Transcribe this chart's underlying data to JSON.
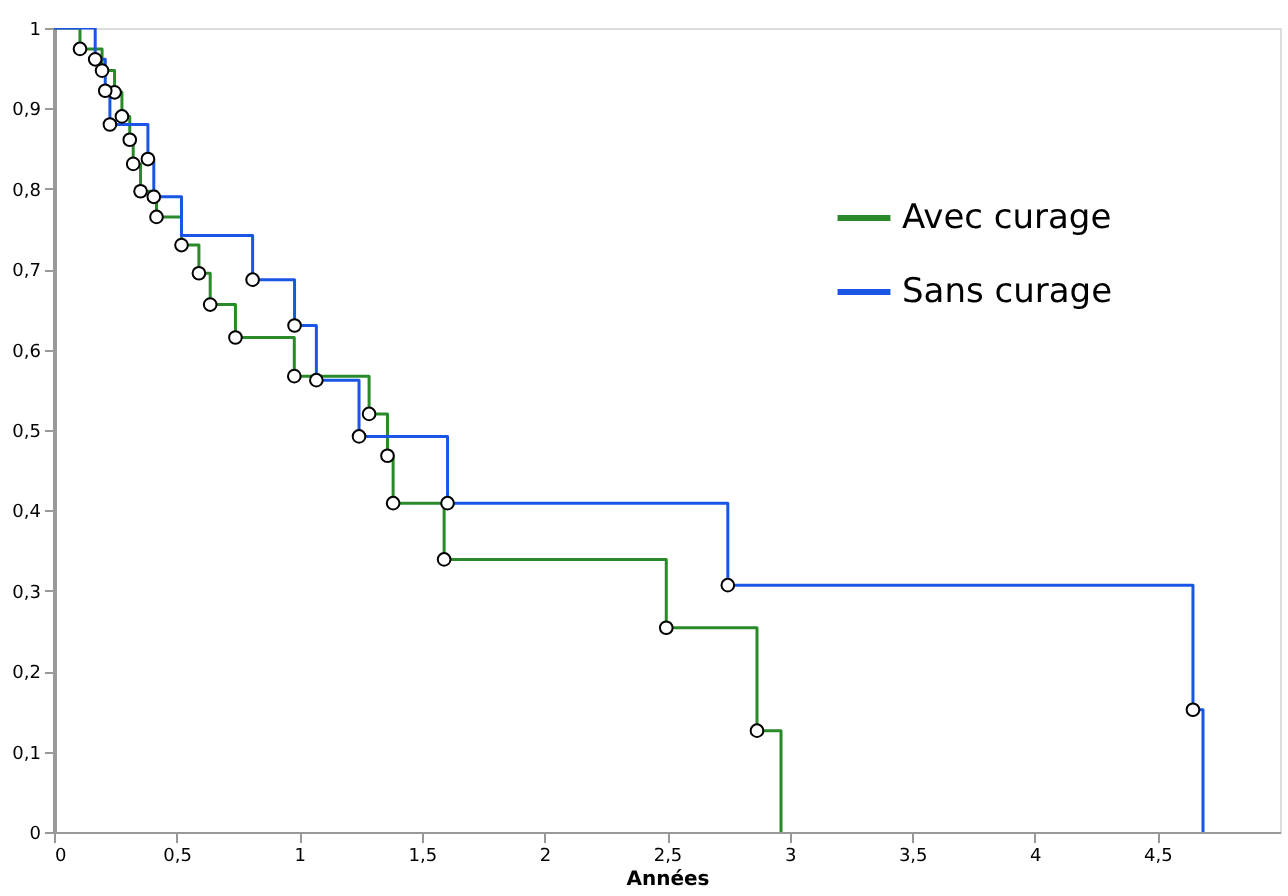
{
  "chart_data": {
    "type": "step",
    "xlabel": "Années",
    "xlim": [
      0,
      5
    ],
    "ylim": [
      0,
      1
    ],
    "xticks": [
      0,
      {
        "value": 0.5,
        "label": "0,5"
      },
      1,
      {
        "value": 1.5,
        "label": "1,5"
      },
      2,
      {
        "value": 2.5,
        "label": "2,5"
      },
      3,
      {
        "value": 3.5,
        "label": "3,5"
      },
      4,
      {
        "value": 4.5,
        "label": "4,5"
      }
    ],
    "yticks": [
      0,
      {
        "value": 0.1,
        "label": "0,1"
      },
      {
        "value": 0.2,
        "label": "0,2"
      },
      {
        "value": 0.3,
        "label": "0,3"
      },
      {
        "value": 0.4,
        "label": "0,4"
      },
      {
        "value": 0.5,
        "label": "0,5"
      },
      {
        "value": 0.6,
        "label": "0,6"
      },
      {
        "value": 0.7,
        "label": "0,7"
      },
      {
        "value": 0.8,
        "label": "0,8"
      },
      {
        "value": 0.9,
        "label": "0,9"
      },
      1
    ],
    "grid": false,
    "legend": "top right",
    "series": [
      {
        "name": "Avec curage",
        "color": "#2a8a2a",
        "x": [
          0,
          0.106,
          0.196,
          0.247,
          0.277,
          0.309,
          0.323,
          0.353,
          0.418,
          0.52,
          0.591,
          0.637,
          0.74,
          0.98,
          1.285,
          1.36,
          1.383,
          1.591,
          2.497,
          2.867,
          2.965
        ],
        "values": [
          1,
          0.974,
          0.947,
          0.92,
          0.89,
          0.861,
          0.831,
          0.797,
          0.765,
          0.73,
          0.695,
          0.656,
          0.615,
          0.567,
          0.52,
          0.468,
          0.409,
          0.339,
          0.254,
          0.126,
          0
        ]
      },
      {
        "name": "Sans curage",
        "color": "#1a56e6",
        "x": [
          0,
          0.168,
          0.209,
          0.228,
          0.383,
          0.407,
          0.52,
          0.81,
          0.981,
          1.07,
          1.244,
          1.605,
          2.748,
          4.645,
          4.686
        ],
        "values": [
          1,
          0.961,
          0.922,
          0.88,
          0.837,
          0.79,
          0.742,
          0.687,
          0.63,
          0.562,
          0.492,
          0.409,
          0.307,
          0.152,
          0
        ]
      },
      {
        "type": "scatter",
        "color": "#000000",
        "marker": "circle",
        "x": [
          0.106,
          0.196,
          0.247,
          0.277,
          0.309,
          0.323,
          0.353,
          0.418,
          0.52,
          0.591,
          0.637,
          0.74,
          0.98,
          1.285,
          1.36,
          1.383,
          1.591,
          2.497,
          2.867,
          0.168,
          0.209,
          0.228,
          0.383,
          0.407,
          0.81,
          0.981,
          1.07,
          1.244,
          1.605,
          2.748,
          4.645
        ],
        "values": [
          0.974,
          0.947,
          0.92,
          0.89,
          0.861,
          0.831,
          0.797,
          0.765,
          0.73,
          0.695,
          0.656,
          0.615,
          0.567,
          0.52,
          0.468,
          0.409,
          0.339,
          0.254,
          0.126,
          0.961,
          0.922,
          0.88,
          0.837,
          0.79,
          0.687,
          0.63,
          0.562,
          0.492,
          0.409,
          0.307,
          0.152
        ]
      }
    ]
  }
}
